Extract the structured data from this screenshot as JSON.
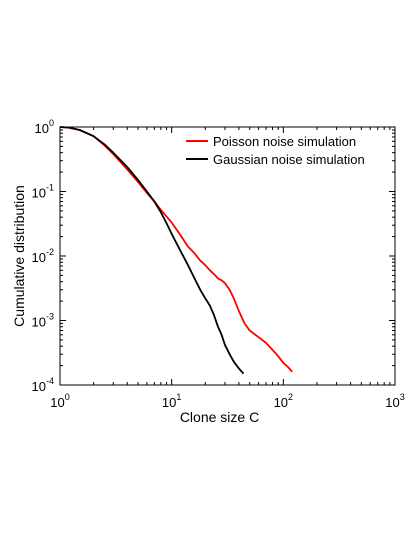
{
  "chart_data": {
    "type": "line",
    "xscale": "log",
    "yscale": "log",
    "xlim": [
      1,
      1000
    ],
    "ylim": [
      0.0001,
      1
    ],
    "xlabel": "Clone size C",
    "ylabel": "Cumulative distribution",
    "xticks": [
      {
        "value": 1,
        "base": "10",
        "exp": "0"
      },
      {
        "value": 10,
        "base": "10",
        "exp": "1"
      },
      {
        "value": 100,
        "base": "10",
        "exp": "2"
      },
      {
        "value": 1000,
        "base": "10",
        "exp": "3"
      }
    ],
    "yticks": [
      {
        "value": 0.0001,
        "base": "10",
        "exp": "-4"
      },
      {
        "value": 0.001,
        "base": "10",
        "exp": "-3"
      },
      {
        "value": 0.01,
        "base": "10",
        "exp": "-2"
      },
      {
        "value": 0.1,
        "base": "10",
        "exp": "-1"
      },
      {
        "value": 1,
        "base": "10",
        "exp": "0"
      }
    ],
    "grid": false,
    "legend_position": "top-right",
    "series": [
      {
        "name": "Poisson noise simulation",
        "color": "#ff0000",
        "x": [
          1,
          1.2,
          1.5,
          2,
          2.5,
          3,
          4,
          5,
          6,
          7,
          8,
          10,
          12,
          14,
          16,
          18,
          20,
          22,
          24,
          26,
          28,
          30,
          33,
          36,
          40,
          45,
          50,
          60,
          70,
          80,
          90,
          100,
          110,
          120
        ],
        "y": [
          1,
          0.98,
          0.9,
          0.72,
          0.52,
          0.38,
          0.22,
          0.14,
          0.095,
          0.07,
          0.052,
          0.033,
          0.021,
          0.014,
          0.011,
          0.0085,
          0.0072,
          0.006,
          0.0052,
          0.0045,
          0.0042,
          0.0038,
          0.003,
          0.0022,
          0.0014,
          0.0009,
          0.0007,
          0.00055,
          0.00045,
          0.00035,
          0.00028,
          0.00022,
          0.00019,
          0.00016
        ]
      },
      {
        "name": "Gaussian noise simulation",
        "color": "#000000",
        "x": [
          1,
          1.2,
          1.5,
          2,
          2.5,
          3,
          4,
          5,
          6,
          7,
          8,
          9,
          10,
          12,
          14,
          16,
          18,
          20,
          22,
          24,
          26,
          28,
          30,
          33,
          36,
          40,
          44
        ],
        "y": [
          1,
          0.98,
          0.9,
          0.72,
          0.54,
          0.4,
          0.24,
          0.15,
          0.1,
          0.07,
          0.048,
          0.032,
          0.022,
          0.012,
          0.0072,
          0.0045,
          0.003,
          0.0022,
          0.0017,
          0.0012,
          0.0008,
          0.0006,
          0.00042,
          0.0003,
          0.00023,
          0.00018,
          0.00015
        ]
      }
    ]
  }
}
